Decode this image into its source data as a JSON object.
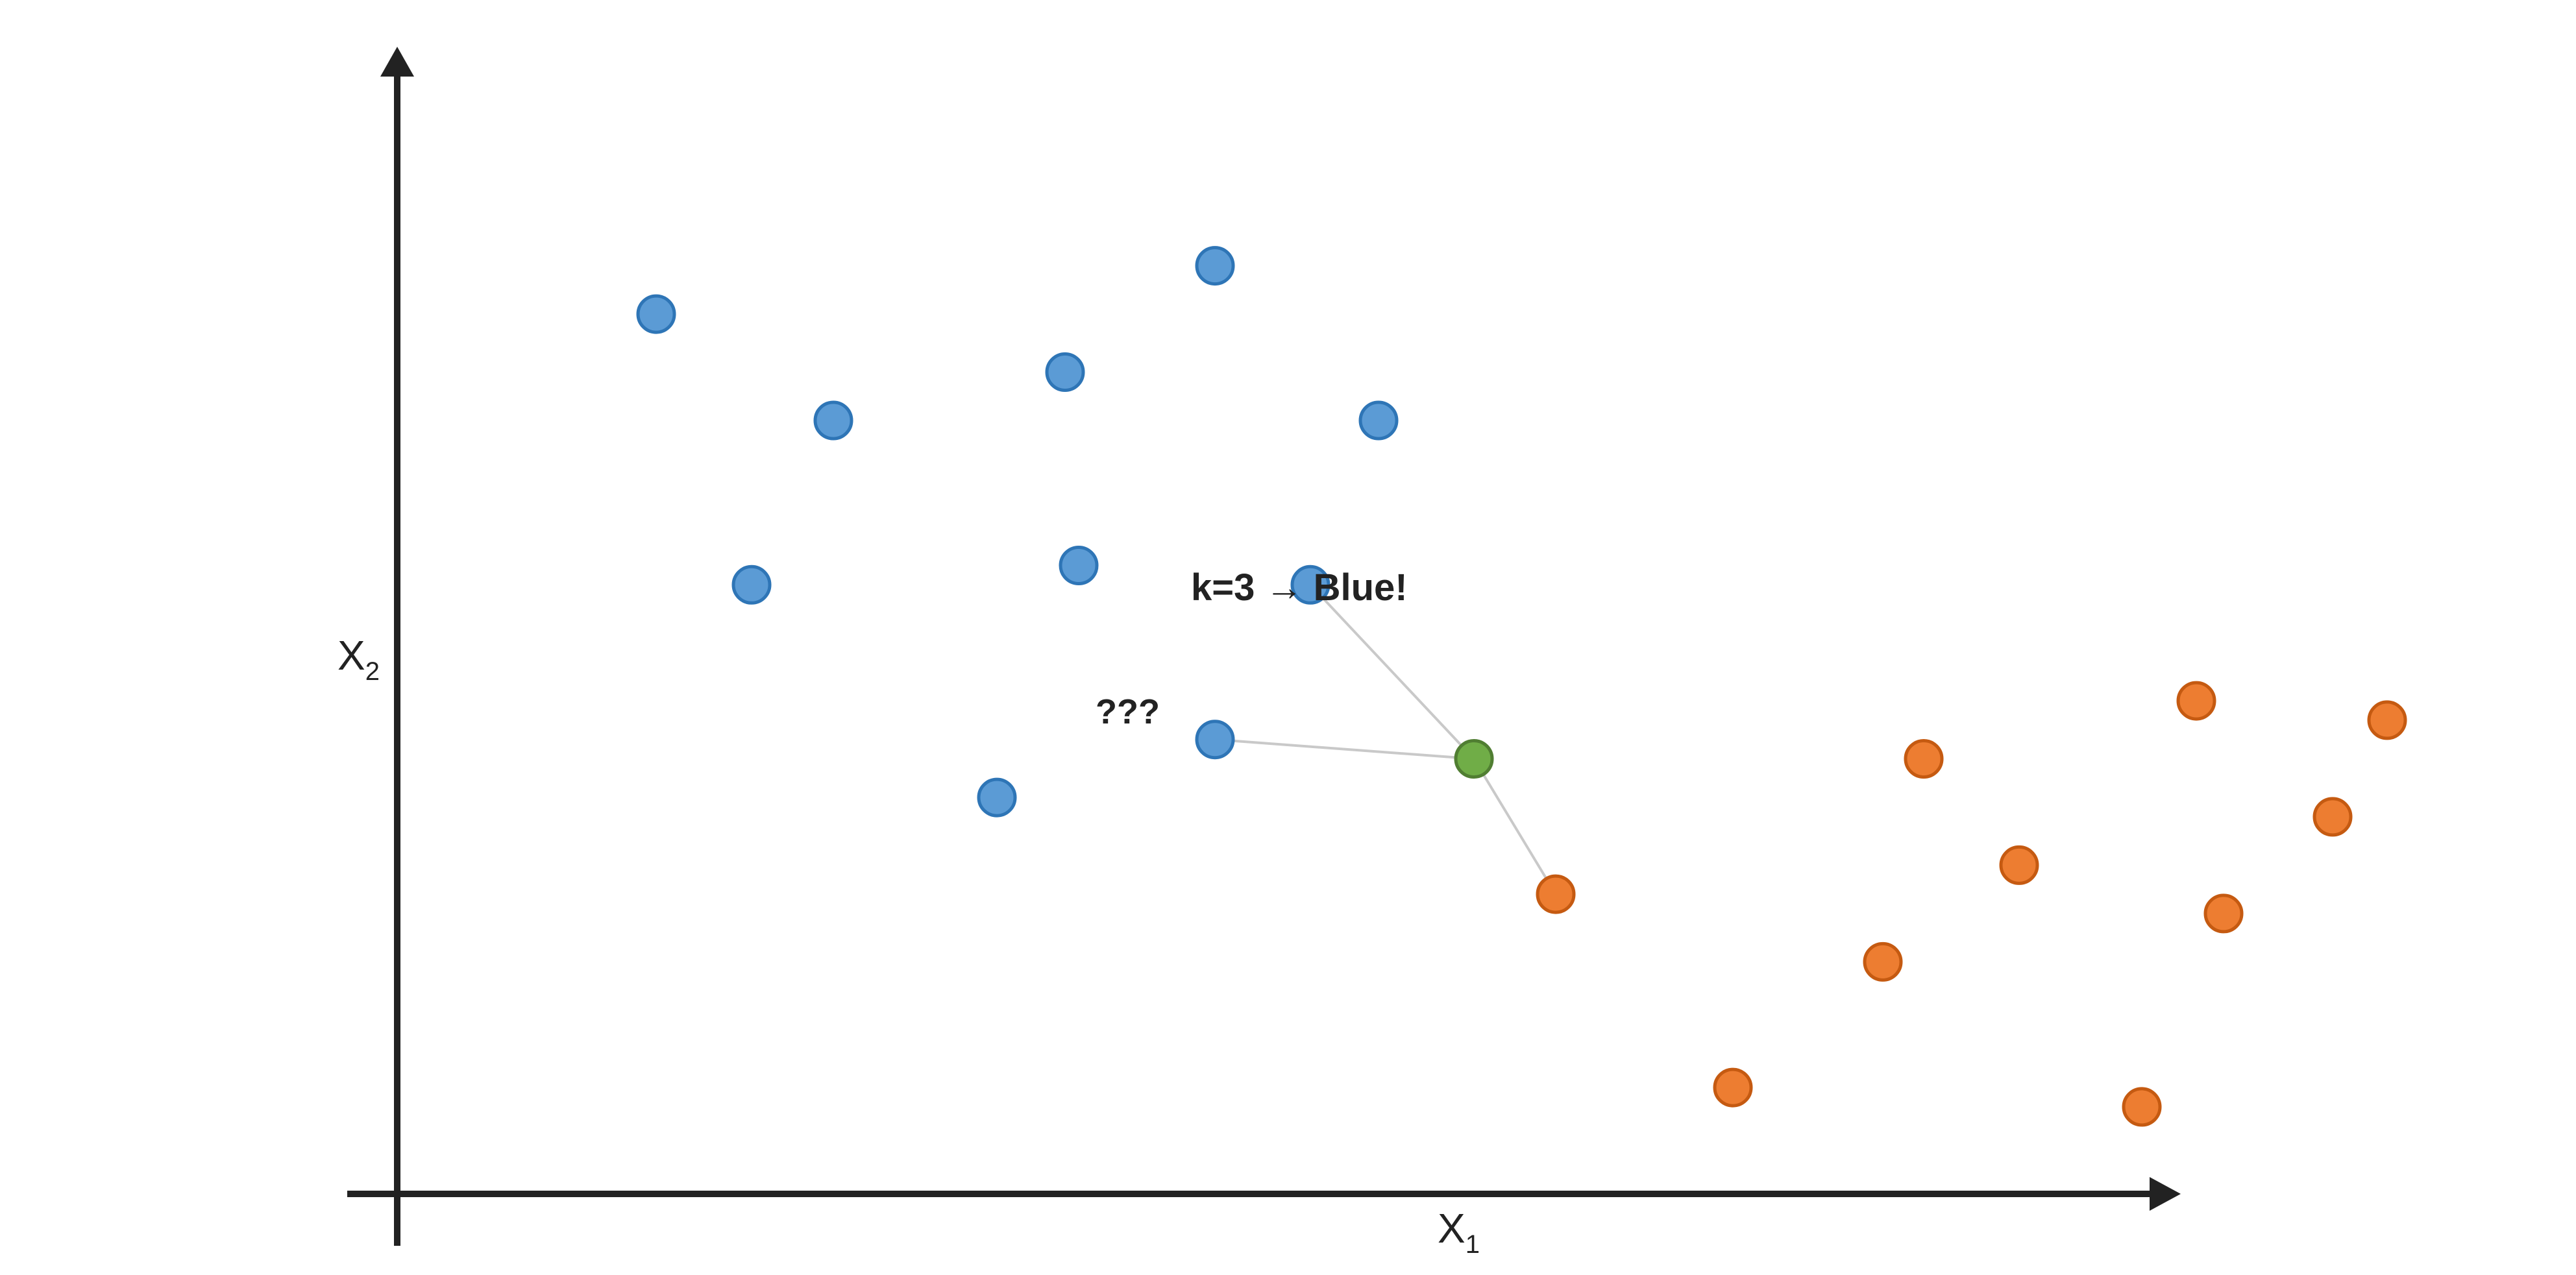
{
  "colors": {
    "blue_fill": "#5B9BD5",
    "blue_stroke": "#2E75B6",
    "orange_fill": "#ED7D31",
    "orange_stroke": "#C55A11",
    "green_fill": "#70AD47",
    "green_stroke": "#507E32",
    "axis": "#222222",
    "neighbor_line": "#C9C9C9"
  },
  "axes": {
    "x_label": "X",
    "x_subscript": "1",
    "y_label": "X",
    "y_subscript": "2"
  },
  "annotations": {
    "result": "k=3 → Blue!",
    "query": "???"
  },
  "points": {
    "blue": [
      [
        1.9,
        9.1
      ],
      [
        3.2,
        8.0
      ],
      [
        4.9,
        8.5
      ],
      [
        6.0,
        9.6
      ],
      [
        7.2,
        8.0
      ],
      [
        2.6,
        6.3
      ],
      [
        5.0,
        6.5
      ],
      [
        6.7,
        6.3
      ],
      [
        6.0,
        4.7
      ],
      [
        4.4,
        4.1
      ]
    ],
    "orange": [
      [
        8.5,
        3.1
      ],
      [
        9.8,
        1.1
      ],
      [
        11.2,
        4.5
      ],
      [
        11.9,
        3.4
      ],
      [
        10.9,
        2.4
      ],
      [
        13.2,
        5.1
      ],
      [
        14.6,
        4.9
      ],
      [
        14.2,
        3.9
      ],
      [
        13.4,
        2.9
      ],
      [
        12.8,
        0.9
      ]
    ],
    "query": [
      7.9,
      4.5
    ]
  },
  "neighbors": [
    [
      6.7,
      6.3
    ],
    [
      6.0,
      4.7
    ],
    [
      8.5,
      3.1
    ]
  ]
}
